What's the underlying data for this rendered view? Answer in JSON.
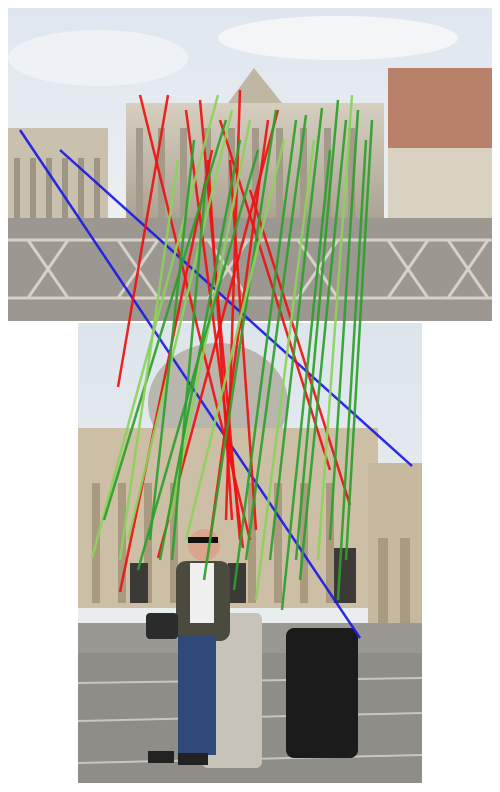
{
  "figure": {
    "kind": "feature-match-visualization",
    "description_visible_text": ""
  },
  "colors": {
    "inlier_green": "#2ca02c",
    "inlier_light_green": "#8bd35a",
    "outlier_red": "#ee1111",
    "epipolar_blue": "#1a1ae6",
    "sky_top": "#dfe5ee",
    "stone": "#cfc6b4",
    "pavement": "#8c8a86"
  },
  "match_counts": {
    "green": 22,
    "red": 12,
    "blue": 2
  }
}
